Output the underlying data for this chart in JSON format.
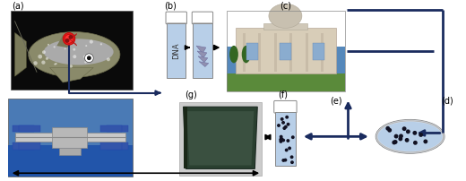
{
  "background_color": "#ffffff",
  "arrow_color": "#1a2b5e",
  "label_color": "#000000",
  "labels": {
    "a": "(a)",
    "b": "(b)",
    "c": "(c)",
    "d": "(d)",
    "e": "(e)",
    "f": "(f)",
    "g": "(g)"
  },
  "vial_fill": "#b8cfe8",
  "dot_color": "#111122",
  "petri_fill": "#b8cfe8",
  "fig_width": 5.2,
  "fig_height": 2.03,
  "dpi": 100,
  "fish_bg": "#0a0a0a",
  "iss_bg_top": "#4a7ab5",
  "iss_bg_bot": "#2255aa",
  "museum_sky": "#5588bb",
  "museum_grass": "#5a8a3a",
  "museum_wall": "#d8cdb8",
  "notebook_bg": "#cccccc",
  "notebook_cover": "#2a4030",
  "notebook_highlight": "#3a5040"
}
